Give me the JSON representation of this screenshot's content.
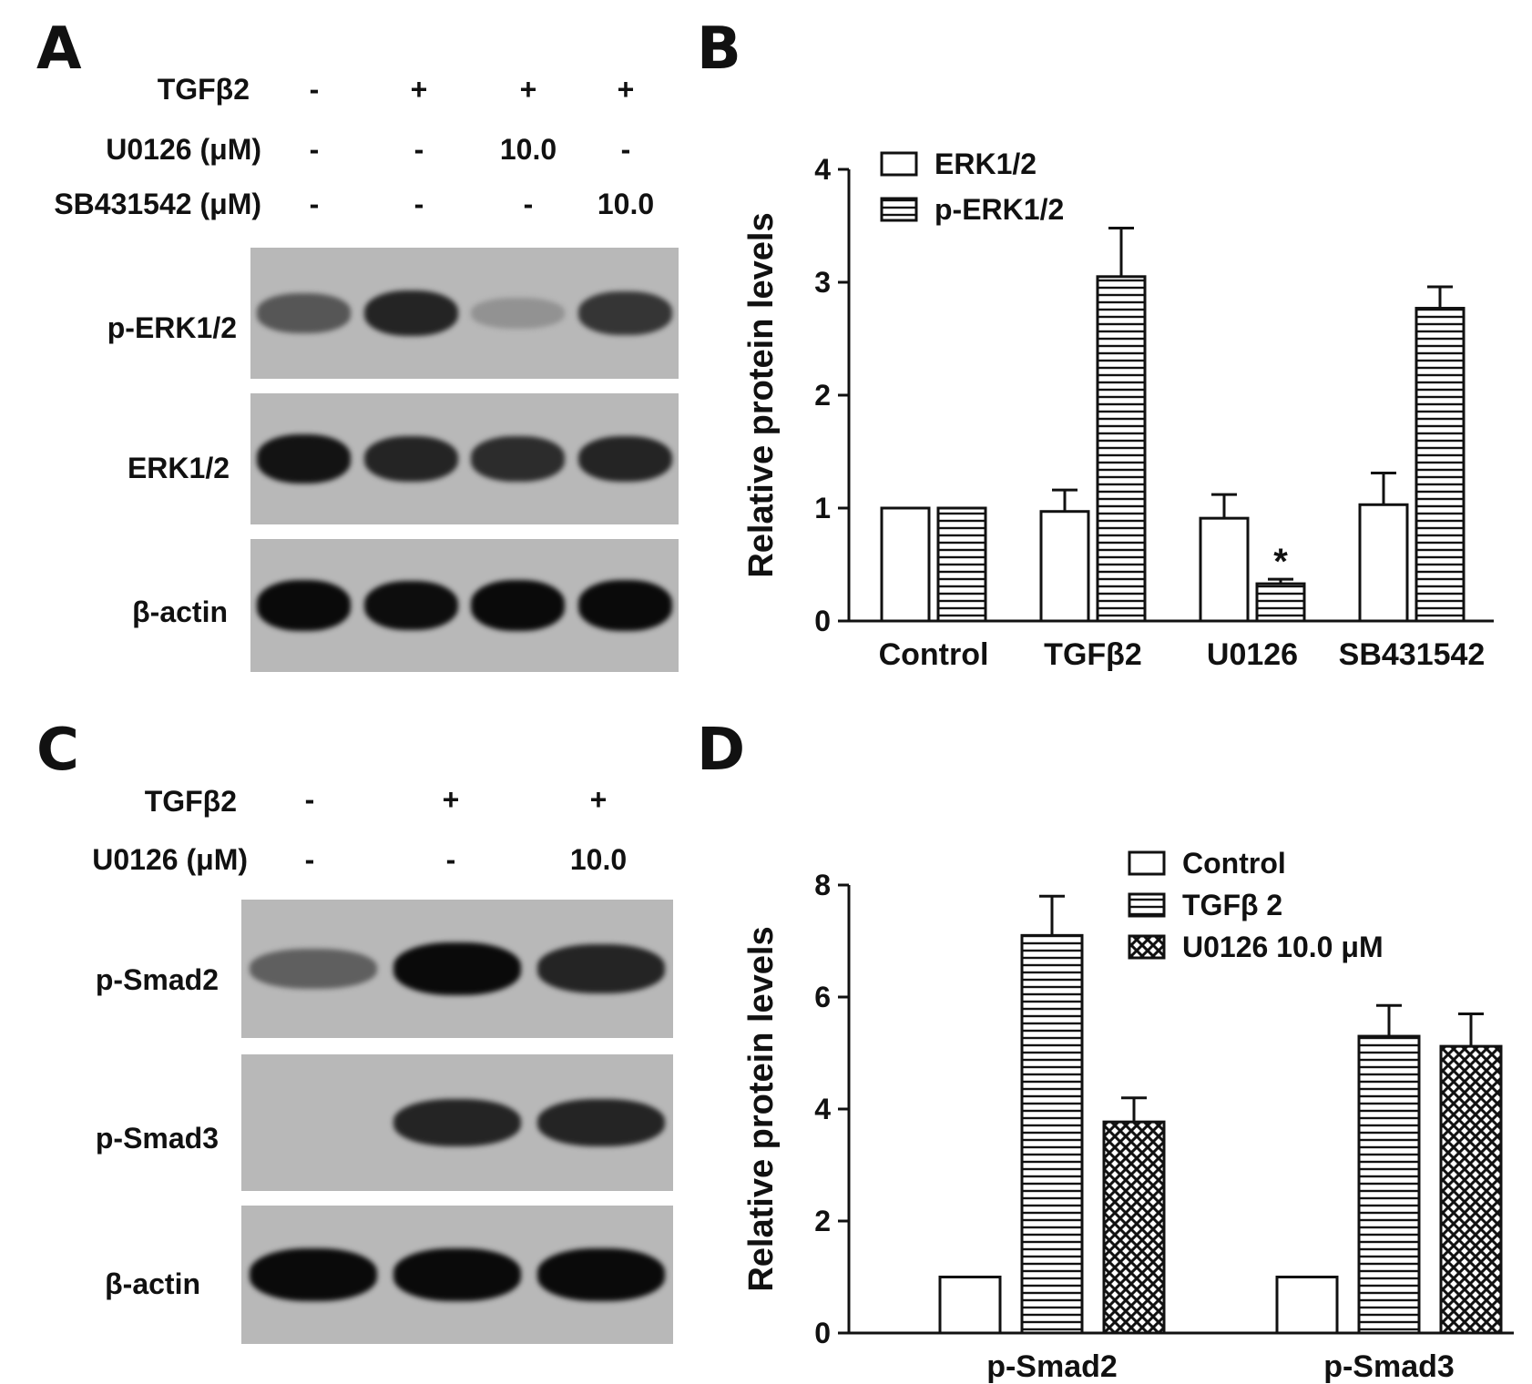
{
  "panel_a": {
    "letter": "A",
    "rows": [
      {
        "label": "TGFβ2",
        "values": [
          "-",
          "+",
          "+",
          "+"
        ]
      },
      {
        "label": "U0126 (μM)",
        "values": [
          "-",
          "-",
          "10.0",
          "-"
        ]
      },
      {
        "label": "SB431542 (μM)",
        "values": [
          "-",
          "-",
          "-",
          "10.0"
        ]
      }
    ],
    "blots": [
      {
        "label": "p-ERK1/2",
        "intensities": [
          0.55,
          0.85,
          0.2,
          0.75
        ]
      },
      {
        "label": "ERK1/2",
        "intensities": [
          0.95,
          0.85,
          0.8,
          0.85
        ]
      },
      {
        "label": "β-actin",
        "intensities": [
          1.0,
          0.98,
          1.0,
          1.0
        ]
      }
    ]
  },
  "panel_c": {
    "letter": "C",
    "rows": [
      {
        "label": "TGFβ2",
        "values": [
          "-",
          "+",
          "+"
        ]
      },
      {
        "label": "U0126 (μM)",
        "values": [
          "-",
          "-",
          "10.0"
        ]
      }
    ],
    "blots": [
      {
        "label": "p-Smad2",
        "intensities": [
          0.5,
          1.0,
          0.85
        ]
      },
      {
        "label": "p-Smad3",
        "intensities": [
          0.0,
          0.85,
          0.85
        ]
      },
      {
        "label": "β-actin",
        "intensities": [
          1.0,
          1.0,
          1.0
        ]
      }
    ]
  },
  "chart_data": [
    {
      "panel": "B",
      "type": "bar",
      "ylabel": "Relative protein levels",
      "categories": [
        "Control",
        "TGFβ2",
        "U0126",
        "SB431542"
      ],
      "series": [
        {
          "name": "ERK1/2",
          "values": [
            1.0,
            0.97,
            0.91,
            1.03
          ],
          "errors": [
            0,
            0.19,
            0.21,
            0.28
          ],
          "pattern": "open"
        },
        {
          "name": "p-ERK1/2",
          "values": [
            1.0,
            3.05,
            0.33,
            2.77
          ],
          "errors": [
            0,
            0.43,
            0.04,
            0.19
          ],
          "pattern": "horizontal-lines"
        }
      ],
      "ylim": [
        0,
        4
      ],
      "yticks": [
        0,
        1,
        2,
        3,
        4
      ],
      "annotations": [
        {
          "category": "U0126",
          "series": "p-ERK1/2",
          "text": "*"
        }
      ],
      "legend_position": "top-left"
    },
    {
      "panel": "D",
      "type": "bar",
      "ylabel": "Relative protein levels",
      "categories": [
        "p-Smad2",
        "p-Smad3"
      ],
      "series": [
        {
          "name": "Control",
          "values": [
            1.0,
            1.0
          ],
          "errors": [
            0,
            0
          ],
          "pattern": "open"
        },
        {
          "name": "TGFβ 2",
          "values": [
            7.1,
            5.3
          ],
          "errors": [
            0.7,
            0.55
          ],
          "pattern": "horizontal-lines"
        },
        {
          "name": "U0126 10.0 μM",
          "values": [
            3.77,
            5.12
          ],
          "errors": [
            0.43,
            0.58
          ],
          "pattern": "crosshatch"
        }
      ],
      "ylim": [
        0,
        8
      ],
      "yticks": [
        0,
        2,
        4,
        6,
        8
      ],
      "legend_position": "top-right"
    }
  ]
}
